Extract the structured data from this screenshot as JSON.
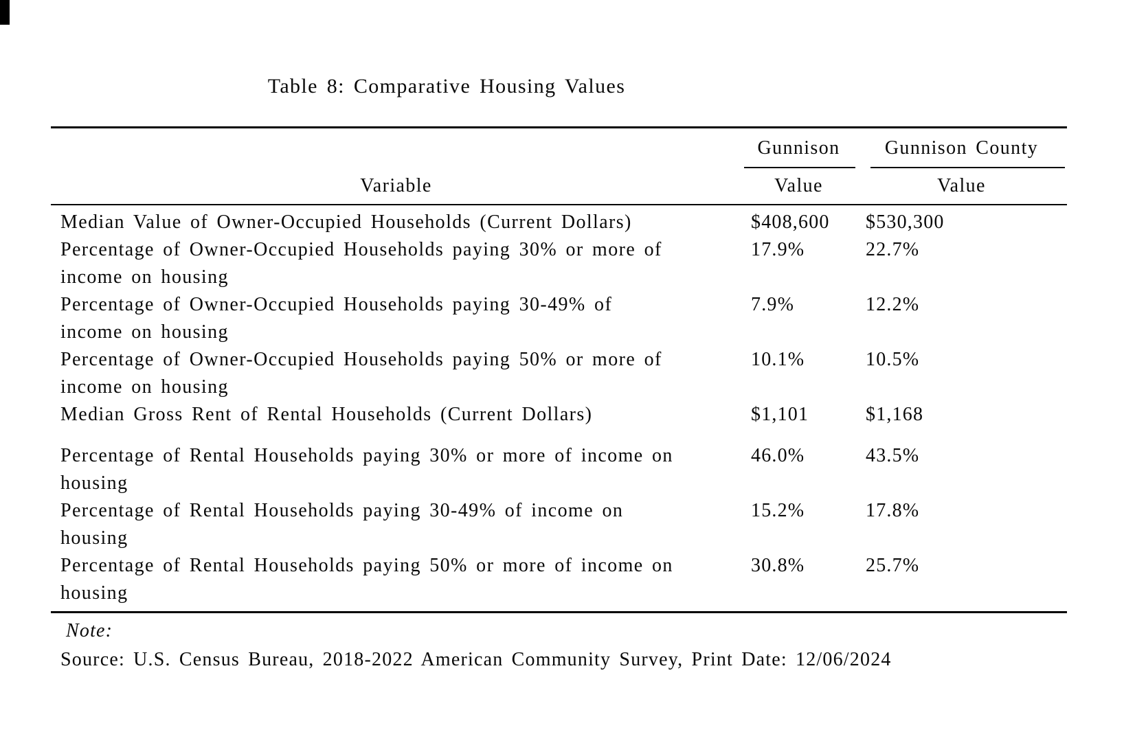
{
  "colors": {
    "text": "#0a0a0a",
    "rule": "#000000",
    "background": "#ffffff",
    "corner_mark": "#000000"
  },
  "title": "Table 8: Comparative Housing Values",
  "table": {
    "variable_header": "Variable",
    "column_groups": [
      {
        "label": "Gunnison",
        "sub_header": "Value"
      },
      {
        "label": "Gunnison County",
        "sub_header": "Value"
      }
    ],
    "rows": [
      {
        "lines": [
          "Median Value of Owner-Occupied Households (Current Dollars)"
        ],
        "gunnison": "$408,600",
        "county": "$530,300"
      },
      {
        "lines": [
          "Percentage of Owner-Occupied Households paying 30% or more of",
          "income on housing"
        ],
        "gunnison": "17.9%",
        "county": "22.7%"
      },
      {
        "lines": [
          "Percentage of Owner-Occupied Households paying 30-49% of",
          "income on housing"
        ],
        "gunnison": "7.9%",
        "county": "12.2%"
      },
      {
        "lines": [
          "Percentage of Owner-Occupied Households paying 50% or more of",
          "income on housing"
        ],
        "gunnison": "10.1%",
        "county": "10.5%"
      },
      {
        "lines": [
          "Median Gross Rent of Rental Households (Current Dollars)"
        ],
        "gunnison": "$1,101",
        "county": "$1,168"
      },
      {
        "lines": [
          "Percentage of Rental Households paying 30% or more of income on",
          "housing"
        ],
        "gunnison": "46.0%",
        "county": "43.5%",
        "spaced_before": true
      },
      {
        "lines": [
          "Percentage of Rental Households paying 30-49% of income on",
          "housing"
        ],
        "gunnison": "15.2%",
        "county": "17.8%"
      },
      {
        "lines": [
          "Percentage of Rental Households paying 50% or more of income on",
          "housing"
        ],
        "gunnison": "30.8%",
        "county": "25.7%"
      }
    ]
  },
  "notes": {
    "note_label": "Note:",
    "source_line": "Source: U.S. Census Bureau, 2018-2022 American Community Survey, Print Date: 12/06/2024"
  }
}
